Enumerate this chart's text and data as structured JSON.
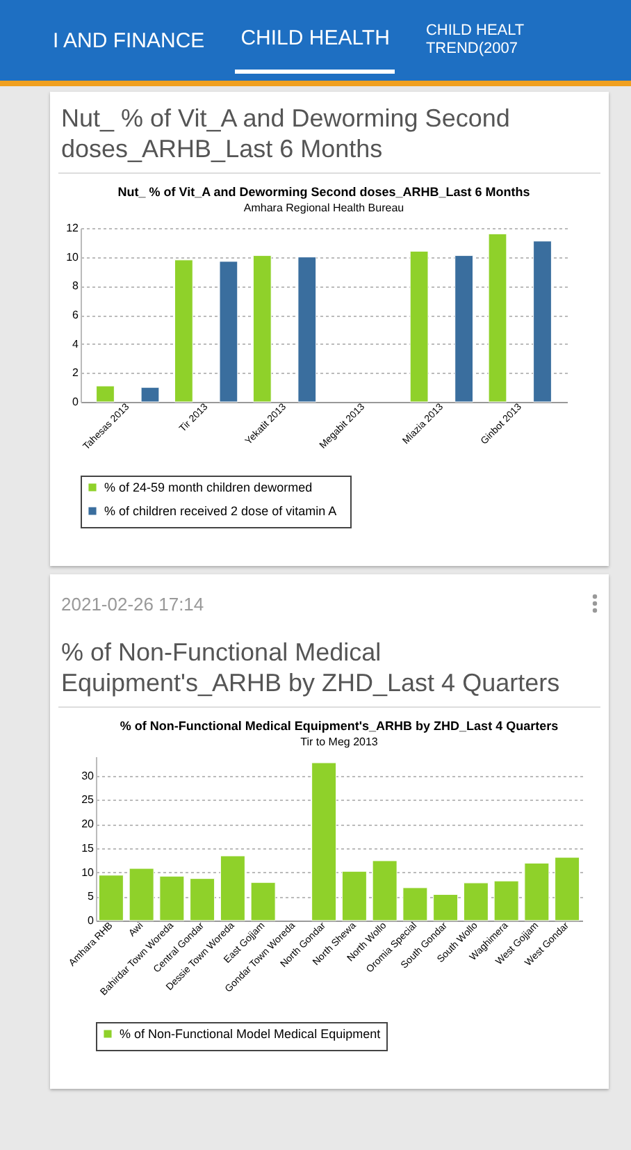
{
  "chart_data": [
    {
      "type": "bar",
      "title": "Nut_ % of Vit_A and Deworming Second doses_ARHB_Last 6 Months",
      "subtitle": "Amhara Regional Health Bureau",
      "annotations": [
        "I AND FINANCE",
        "CHILD HEALTH",
        "CHILD HEALT TREND(2007",
        "Nut_ % of Vit_A and Deworming Second doses_ARHB_Last 6 Months"
      ],
      "categories": [
        "Tahesas 2013",
        "Tir 2013",
        "Yekatit 2013",
        "Megabit 2013",
        "Miazia 2013",
        "Ginbot 2013"
      ],
      "series": [
        {
          "name": "% of 24-59 month children dewormed",
          "color": "#8fd12a",
          "values": [
            1.1,
            9.8,
            10.1,
            null,
            10.4,
            11.6
          ]
        },
        {
          "name": "% of children  received 2 dose of  vitamin A",
          "color": "#3a6e9e",
          "values": [
            1.0,
            9.7,
            10.0,
            null,
            10.1,
            11.1
          ]
        }
      ],
      "ylim": [
        0,
        12
      ],
      "yticks": [
        0,
        2,
        4,
        6,
        8,
        10,
        12
      ],
      "grid": "y",
      "legend": "bottom"
    },
    {
      "type": "bar",
      "title": "% of Non-Functional Medical Equipment's_ARHB by ZHD_Last 4 Quarters",
      "subtitle": "Tir to Meg 2013",
      "annotations": [
        "2021-02-26 17:14",
        " % of Non-Functional Medical Equipment's_ARHB by ZHD_Last 4 Quarters"
      ],
      "categories": [
        "Amhara RHB",
        "Awi",
        "Bahirdar Town Woreda",
        "Central Gondar",
        "Dessie Town Woreda",
        "East Gojjam",
        "Gondar Town Woreda",
        "North Gondar",
        "North Shewa",
        "North Wollo",
        "Oromia Special",
        "South Gondar",
        "South Wollo",
        "Waghimera",
        "West Gojjam",
        "West Gondar"
      ],
      "series": [
        {
          "name": "% of Non-Functional Model Medical Equipment",
          "color": "#8fd12a",
          "values": [
            9.4,
            10.8,
            9.2,
            8.7,
            13.4,
            7.9,
            null,
            32.7,
            10.2,
            12.4,
            6.8,
            5.4,
            7.8,
            8.2,
            11.9,
            13.1
          ]
        }
      ],
      "ylim": [
        0,
        34
      ],
      "yticks": [
        0,
        5,
        10,
        15,
        20,
        25,
        30
      ],
      "grid": "y",
      "legend": "bottom"
    }
  ]
}
